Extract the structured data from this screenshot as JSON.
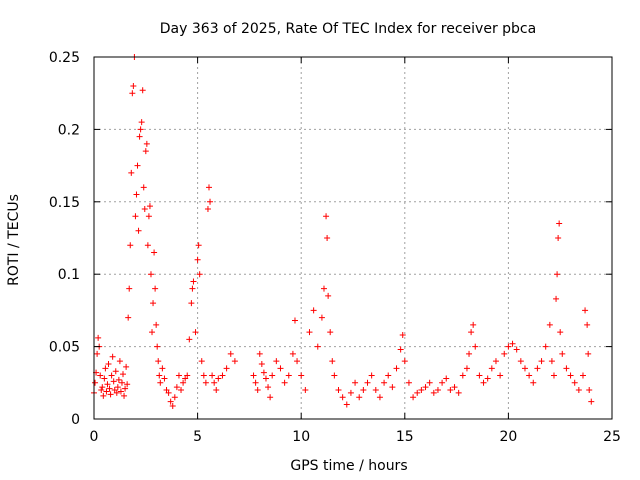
{
  "chart_data": {
    "type": "scatter",
    "title": "Day 363 of 2025, Rate Of TEC Index for receiver pbca",
    "xlabel": "GPS time / hours",
    "ylabel": "ROTI / TECUs",
    "xlim": [
      0,
      25
    ],
    "ylim": [
      0,
      0.25
    ],
    "xticks": [
      0,
      5,
      10,
      15,
      20,
      25
    ],
    "xtick_labels": [
      "0",
      "5",
      "10",
      "15",
      "20",
      "25"
    ],
    "yticks": [
      0,
      0.05,
      0.1,
      0.15,
      0.2,
      0.25
    ],
    "ytick_labels": [
      "0",
      "0.05",
      "0.1",
      "0.15",
      "0.2",
      "0.25"
    ],
    "grid": true,
    "marker": "plus",
    "color": "#ff0000",
    "series": [
      {
        "points": [
          [
            0.0,
            0.018
          ],
          [
            0.05,
            0.025
          ],
          [
            0.1,
            0.032
          ],
          [
            0.15,
            0.045
          ],
          [
            0.2,
            0.056
          ],
          [
            0.25,
            0.05
          ],
          [
            0.3,
            0.03
          ],
          [
            0.35,
            0.02
          ],
          [
            0.4,
            0.022
          ],
          [
            0.45,
            0.016
          ],
          [
            0.5,
            0.028
          ],
          [
            0.55,
            0.035
          ],
          [
            0.6,
            0.019
          ],
          [
            0.65,
            0.024
          ],
          [
            0.7,
            0.038
          ],
          [
            0.75,
            0.021
          ],
          [
            0.8,
            0.017
          ],
          [
            0.85,
            0.03
          ],
          [
            0.9,
            0.043
          ],
          [
            0.95,
            0.026
          ],
          [
            1.0,
            0.02
          ],
          [
            1.05,
            0.033
          ],
          [
            1.1,
            0.018
          ],
          [
            1.15,
            0.022
          ],
          [
            1.2,
            0.027
          ],
          [
            1.25,
            0.04
          ],
          [
            1.3,
            0.019
          ],
          [
            1.35,
            0.025
          ],
          [
            1.4,
            0.031
          ],
          [
            1.45,
            0.016
          ],
          [
            1.5,
            0.021
          ],
          [
            1.55,
            0.036
          ],
          [
            1.6,
            0.024
          ],
          [
            1.65,
            0.07
          ],
          [
            1.7,
            0.09
          ],
          [
            1.75,
            0.12
          ],
          [
            1.8,
            0.17
          ],
          [
            1.85,
            0.225
          ],
          [
            1.9,
            0.23
          ],
          [
            1.95,
            0.25
          ],
          [
            2.0,
            0.14
          ],
          [
            2.05,
            0.155
          ],
          [
            2.1,
            0.175
          ],
          [
            2.15,
            0.13
          ],
          [
            2.2,
            0.195
          ],
          [
            2.25,
            0.2
          ],
          [
            2.3,
            0.205
          ],
          [
            2.35,
            0.227
          ],
          [
            2.4,
            0.16
          ],
          [
            2.45,
            0.145
          ],
          [
            2.5,
            0.185
          ],
          [
            2.55,
            0.19
          ],
          [
            2.6,
            0.12
          ],
          [
            2.65,
            0.14
          ],
          [
            2.7,
            0.147
          ],
          [
            2.75,
            0.1
          ],
          [
            2.8,
            0.06
          ],
          [
            2.85,
            0.08
          ],
          [
            2.9,
            0.115
          ],
          [
            2.95,
            0.09
          ],
          [
            3.0,
            0.065
          ],
          [
            3.05,
            0.05
          ],
          [
            3.1,
            0.04
          ],
          [
            3.15,
            0.03
          ],
          [
            3.2,
            0.025
          ],
          [
            3.3,
            0.035
          ],
          [
            3.4,
            0.028
          ],
          [
            3.5,
            0.02
          ],
          [
            3.6,
            0.018
          ],
          [
            3.7,
            0.012
          ],
          [
            3.8,
            0.009
          ],
          [
            3.9,
            0.015
          ],
          [
            4.0,
            0.022
          ],
          [
            4.1,
            0.03
          ],
          [
            4.2,
            0.02
          ],
          [
            4.3,
            0.025
          ],
          [
            4.4,
            0.028
          ],
          [
            4.5,
            0.03
          ],
          [
            4.6,
            0.055
          ],
          [
            4.7,
            0.08
          ],
          [
            4.75,
            0.09
          ],
          [
            4.8,
            0.095
          ],
          [
            4.9,
            0.06
          ],
          [
            5.0,
            0.11
          ],
          [
            5.05,
            0.12
          ],
          [
            5.1,
            0.1
          ],
          [
            5.2,
            0.04
          ],
          [
            5.3,
            0.03
          ],
          [
            5.4,
            0.025
          ],
          [
            5.5,
            0.145
          ],
          [
            5.55,
            0.16
          ],
          [
            5.6,
            0.15
          ],
          [
            5.7,
            0.03
          ],
          [
            5.8,
            0.025
          ],
          [
            5.9,
            0.02
          ],
          [
            6.0,
            0.028
          ],
          [
            6.2,
            0.03
          ],
          [
            6.4,
            0.035
          ],
          [
            6.6,
            0.045
          ],
          [
            6.8,
            0.04
          ],
          [
            7.7,
            0.03
          ],
          [
            7.8,
            0.025
          ],
          [
            7.9,
            0.02
          ],
          [
            8.0,
            0.045
          ],
          [
            8.1,
            0.038
          ],
          [
            8.2,
            0.032
          ],
          [
            8.3,
            0.028
          ],
          [
            8.4,
            0.022
          ],
          [
            8.5,
            0.015
          ],
          [
            8.6,
            0.03
          ],
          [
            8.8,
            0.04
          ],
          [
            9.0,
            0.035
          ],
          [
            9.2,
            0.025
          ],
          [
            9.4,
            0.03
          ],
          [
            9.6,
            0.045
          ],
          [
            9.7,
            0.068
          ],
          [
            9.8,
            0.04
          ],
          [
            10.0,
            0.03
          ],
          [
            10.2,
            0.02
          ],
          [
            10.4,
            0.06
          ],
          [
            10.6,
            0.075
          ],
          [
            10.8,
            0.05
          ],
          [
            11.0,
            0.07
          ],
          [
            11.1,
            0.09
          ],
          [
            11.2,
            0.14
          ],
          [
            11.25,
            0.125
          ],
          [
            11.3,
            0.085
          ],
          [
            11.4,
            0.06
          ],
          [
            11.5,
            0.04
          ],
          [
            11.6,
            0.03
          ],
          [
            11.8,
            0.02
          ],
          [
            12.0,
            0.015
          ],
          [
            12.2,
            0.01
          ],
          [
            12.4,
            0.018
          ],
          [
            12.6,
            0.025
          ],
          [
            12.8,
            0.015
          ],
          [
            13.0,
            0.02
          ],
          [
            13.2,
            0.025
          ],
          [
            13.4,
            0.03
          ],
          [
            13.6,
            0.02
          ],
          [
            13.8,
            0.015
          ],
          [
            14.0,
            0.025
          ],
          [
            14.2,
            0.03
          ],
          [
            14.4,
            0.022
          ],
          [
            14.6,
            0.035
          ],
          [
            14.8,
            0.048
          ],
          [
            14.9,
            0.058
          ],
          [
            15.0,
            0.04
          ],
          [
            15.2,
            0.025
          ],
          [
            15.4,
            0.015
          ],
          [
            15.6,
            0.018
          ],
          [
            15.8,
            0.02
          ],
          [
            16.0,
            0.022
          ],
          [
            16.2,
            0.025
          ],
          [
            16.4,
            0.018
          ],
          [
            16.6,
            0.02
          ],
          [
            16.8,
            0.025
          ],
          [
            17.0,
            0.028
          ],
          [
            17.2,
            0.02
          ],
          [
            17.4,
            0.022
          ],
          [
            17.6,
            0.018
          ],
          [
            17.8,
            0.03
          ],
          [
            18.0,
            0.035
          ],
          [
            18.1,
            0.045
          ],
          [
            18.2,
            0.06
          ],
          [
            18.3,
            0.065
          ],
          [
            18.4,
            0.05
          ],
          [
            18.6,
            0.03
          ],
          [
            18.8,
            0.025
          ],
          [
            19.0,
            0.028
          ],
          [
            19.2,
            0.035
          ],
          [
            19.4,
            0.04
          ],
          [
            19.6,
            0.03
          ],
          [
            19.8,
            0.045
          ],
          [
            20.0,
            0.05
          ],
          [
            20.2,
            0.052
          ],
          [
            20.4,
            0.048
          ],
          [
            20.6,
            0.04
          ],
          [
            20.8,
            0.035
          ],
          [
            21.0,
            0.03
          ],
          [
            21.2,
            0.025
          ],
          [
            21.4,
            0.035
          ],
          [
            21.6,
            0.04
          ],
          [
            21.8,
            0.05
          ],
          [
            22.0,
            0.065
          ],
          [
            22.1,
            0.04
          ],
          [
            22.2,
            0.03
          ],
          [
            22.3,
            0.083
          ],
          [
            22.35,
            0.1
          ],
          [
            22.4,
            0.125
          ],
          [
            22.45,
            0.135
          ],
          [
            22.5,
            0.06
          ],
          [
            22.6,
            0.045
          ],
          [
            22.8,
            0.035
          ],
          [
            23.0,
            0.03
          ],
          [
            23.2,
            0.025
          ],
          [
            23.4,
            0.02
          ],
          [
            23.6,
            0.03
          ],
          [
            23.7,
            0.075
          ],
          [
            23.8,
            0.065
          ],
          [
            23.85,
            0.045
          ],
          [
            23.9,
            0.02
          ],
          [
            24.0,
            0.012
          ]
        ]
      }
    ]
  }
}
